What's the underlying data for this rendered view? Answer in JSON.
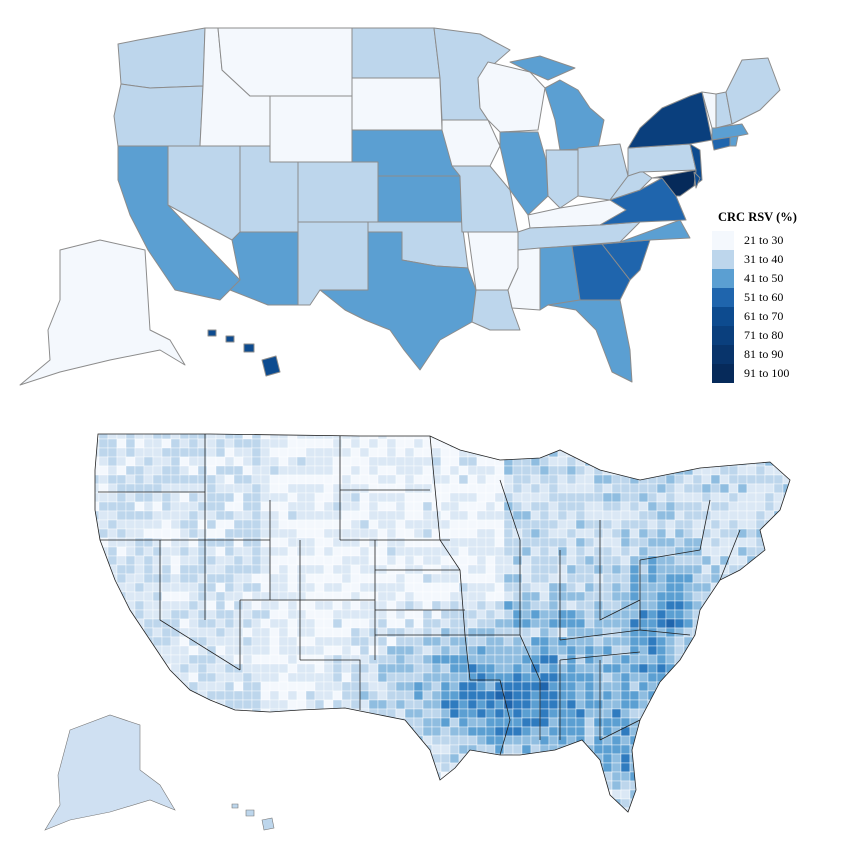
{
  "legend": {
    "title": "CRC RSV (%)",
    "bins": [
      {
        "label": "21 to 30",
        "color": "#f4f8fd"
      },
      {
        "label": "31 to 40",
        "color": "#bdd6ec"
      },
      {
        "label": "41 to 50",
        "color": "#5b9fd2"
      },
      {
        "label": "51 to 60",
        "color": "#1f65ad"
      },
      {
        "label": "61 to 70",
        "color": "#0d4b8f"
      },
      {
        "label": "71 to 80",
        "color": "#0a3f7d"
      },
      {
        "label": "81 to 90",
        "color": "#08346b"
      },
      {
        "label": "91 to 100",
        "color": "#062a5a"
      }
    ]
  },
  "colors": {
    "outline": "#8c8c8c",
    "background": "#ffffff"
  }
}
